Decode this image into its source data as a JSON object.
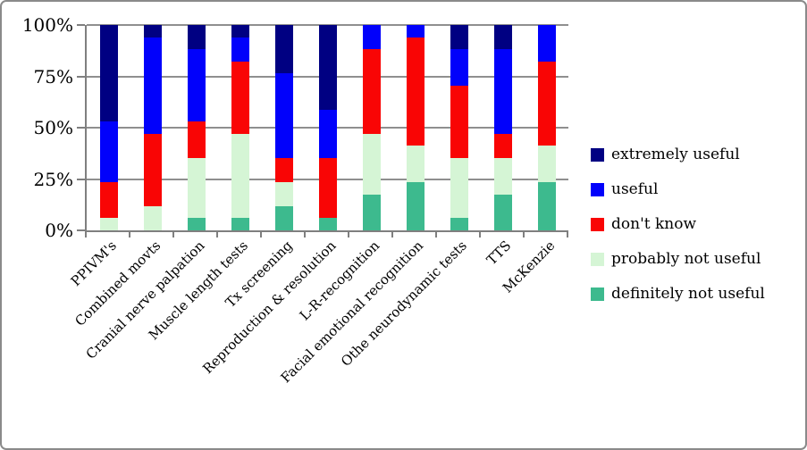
{
  "figure": {
    "background": "#ffffff",
    "border_color": "#8a8a8a"
  },
  "colors": {
    "axis": "#7f7f7f",
    "gridline": "#8f8f8f",
    "text": "#000000"
  },
  "chart_data": {
    "type": "bar",
    "subtype": "100%-stacked-column",
    "title": "",
    "xlabel": "",
    "ylabel": "",
    "ylim": [
      0,
      100
    ],
    "grid": true,
    "legend_position": "right",
    "y_ticks": [
      {
        "label": "100%",
        "value": 100
      },
      {
        "label": "75%",
        "value": 75
      },
      {
        "label": "50%",
        "value": 50
      },
      {
        "label": "25%",
        "value": 25
      },
      {
        "label": "0%",
        "value": 0
      }
    ],
    "categories": [
      "PPIVM's",
      "Combined movts",
      "Cranial nerve palpation",
      "Muscle length tests",
      "Tx screening",
      "Reproduction & resolution",
      "L-R-recognition",
      "Facial emotional recognition",
      "Othe neurodynamic tests",
      "TTS",
      "McKenzie"
    ],
    "series": [
      {
        "name": "definitely not useful",
        "color": "#3dba8e",
        "values": [
          0,
          0,
          5.9,
          5.9,
          11.8,
          5.9,
          17.6,
          23.5,
          5.9,
          17.6,
          23.5
        ]
      },
      {
        "name": "probably not useful",
        "color": "#d5f5d5",
        "values": [
          5.9,
          11.8,
          29.4,
          41.2,
          11.8,
          0,
          29.4,
          17.6,
          29.4,
          17.6,
          17.6
        ]
      },
      {
        "name": "don't know",
        "color": "#f90505",
        "values": [
          17.6,
          35.3,
          17.6,
          35.3,
          11.8,
          29.4,
          41.2,
          52.9,
          35.3,
          11.8,
          41.2
        ]
      },
      {
        "name": "useful",
        "color": "#0101fb",
        "values": [
          29.4,
          47.1,
          35.3,
          11.8,
          41.2,
          23.5,
          11.8,
          5.9,
          17.6,
          41.2,
          17.6
        ]
      },
      {
        "name": "extremely useful",
        "color": "#000082",
        "values": [
          47.1,
          5.9,
          11.8,
          5.9,
          23.5,
          41.2,
          0,
          0,
          11.8,
          11.8,
          0
        ]
      }
    ],
    "legend_order": [
      "extremely useful",
      "useful",
      "don't know",
      "probably not useful",
      "definitely not useful"
    ]
  }
}
